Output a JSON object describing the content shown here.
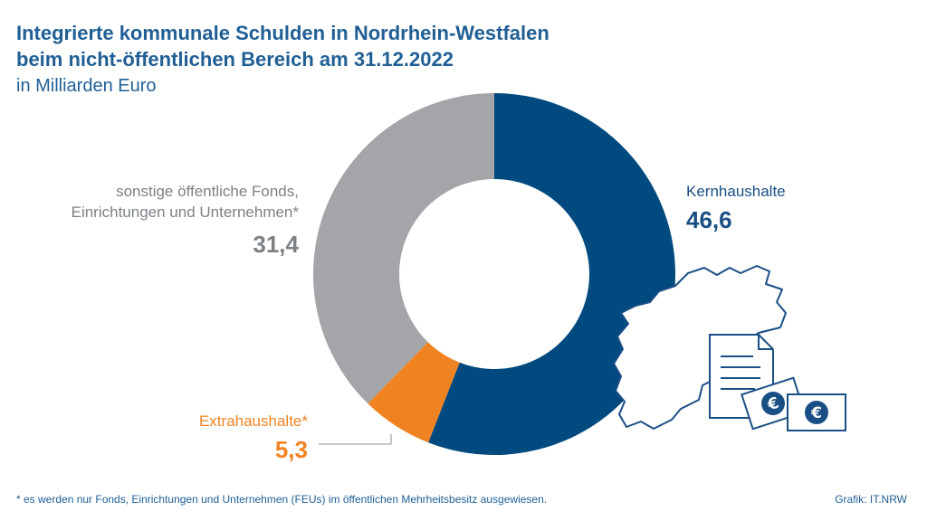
{
  "title_line1": "Integrierte kommunale Schulden in Nordrhein-Westfalen",
  "title_line2": "beim nicht-öffentlichen Bereich am 31.12.2022",
  "subtitle": "in Milliarden Euro",
  "chart_data": {
    "type": "pie",
    "title": "Integrierte kommunale Schulden in Nordrhein-Westfalen beim nicht-öffentlichen Bereich am 31.12.2022",
    "subtitle": "in Milliarden Euro",
    "slices": [
      {
        "name": "Kernhaushalte",
        "value": 46.6,
        "label": "46,6",
        "color": "#004a80"
      },
      {
        "name": "Extrahaushalte*",
        "value": 5.3,
        "label": "5,3",
        "color": "#f08321"
      },
      {
        "name": "sonstige öffentliche Fonds, Einrichtungen und Unternehmen*",
        "value": 31.4,
        "label": "31,4",
        "color": "#a3a5a8"
      }
    ]
  },
  "labels": {
    "gray_line1": "sonstige öffentliche Fonds,",
    "gray_line2": "Einrichtungen und Unternehmen*"
  },
  "footnote": "*  es werden nur Fonds, Einrichtungen und Unternehmen (FEUs) im öffentlichen Mehrheitsbesitz ausgewiesen.",
  "source": "Grafik: IT.NRW",
  "icons": [
    "nrw-map-icon",
    "document-icon",
    "euro-banknote-icon"
  ]
}
